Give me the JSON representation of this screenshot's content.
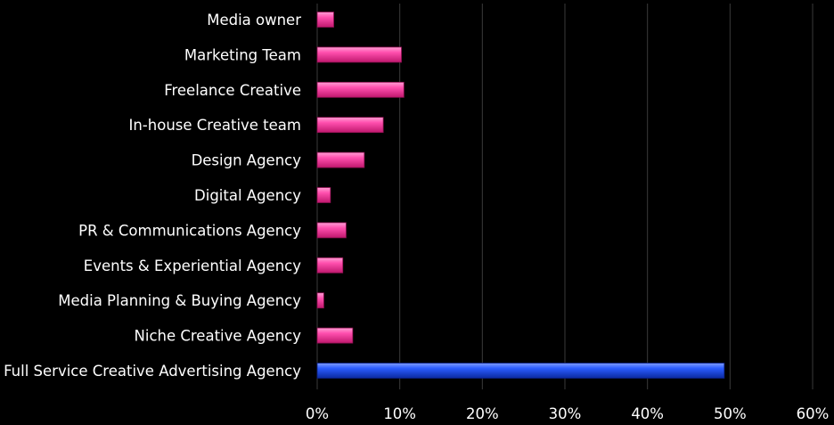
{
  "chart_data": {
    "type": "bar",
    "orientation": "horizontal",
    "title": "",
    "xlabel": "",
    "ylabel": "",
    "categories": [
      "Media owner",
      "Marketing Team",
      "Freelance Creative",
      "In-house Creative team",
      "Design Agency",
      "Digital Agency",
      "PR & Communications Agency",
      "Events & Experiential Agency",
      "Media Planning & Buying Agency",
      "Niche Creative Agency",
      "Full Service Creative Advertising Agency"
    ],
    "values": [
      2,
      10.2,
      10.5,
      8,
      5.7,
      1.6,
      3.5,
      3.1,
      0.8,
      4.3,
      49.3
    ],
    "value_unit": "%",
    "xlim": [
      0,
      60
    ],
    "xticks": [
      "0%",
      "10%",
      "20%",
      "30%",
      "40%",
      "50%",
      "60%"
    ],
    "grid": true,
    "legend": "none",
    "colors": {
      "background": "#000000",
      "bar_default": "#ff3fa6",
      "bar_highlight": "#1a4cf0",
      "text": "#ffffff",
      "grid": "#3a3a3a"
    },
    "highlight_index": 10
  }
}
